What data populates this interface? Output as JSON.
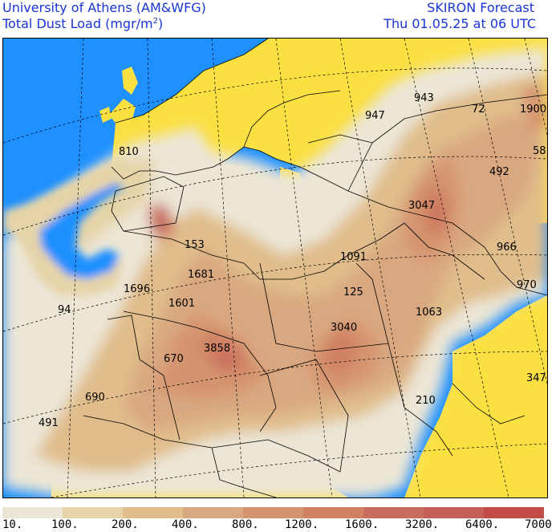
{
  "header": {
    "institution": "University of Athens (AM&WFG)",
    "variable": "Total Dust Load (mgr/m",
    "variable_exp": "2",
    "variable_close": ")",
    "model": "SKIRON Forecast",
    "valid_time": "Thu 01.05.25 at 06 UTC"
  },
  "map": {
    "colors": {
      "sea": "#1e90ff",
      "land": "#fbe042",
      "boundary": "#000000",
      "graticule": "#000000"
    },
    "labels": [
      {
        "id": "lbl-810",
        "text": "810"
      },
      {
        "id": "lbl-947",
        "text": "947"
      },
      {
        "id": "lbl-943",
        "text": "943"
      },
      {
        "id": "lbl-72",
        "text": "72"
      },
      {
        "id": "lbl-1900",
        "text": "1900"
      },
      {
        "id": "lbl-58",
        "text": "58"
      },
      {
        "id": "lbl-492",
        "text": "492"
      },
      {
        "id": "lbl-3047",
        "text": "3047"
      },
      {
        "id": "lbl-153",
        "text": "153"
      },
      {
        "id": "lbl-1091",
        "text": "1091"
      },
      {
        "id": "lbl-966",
        "text": "966"
      },
      {
        "id": "lbl-1681",
        "text": "1681"
      },
      {
        "id": "lbl-1696",
        "text": "1696"
      },
      {
        "id": "lbl-970",
        "text": "970"
      },
      {
        "id": "lbl-125",
        "text": "125"
      },
      {
        "id": "lbl-94",
        "text": "94"
      },
      {
        "id": "lbl-1601",
        "text": "1601"
      },
      {
        "id": "lbl-1063",
        "text": "1063"
      },
      {
        "id": "lbl-3040",
        "text": "3040"
      },
      {
        "id": "lbl-3858",
        "text": "3858"
      },
      {
        "id": "lbl-670",
        "text": "670"
      },
      {
        "id": "lbl-347",
        "text": "347"
      },
      {
        "id": "lbl-690",
        "text": "690"
      },
      {
        "id": "lbl-210",
        "text": "210"
      },
      {
        "id": "lbl-491",
        "text": "491"
      }
    ]
  },
  "colorbar": {
    "colors": [
      "#ece6d6",
      "#e6d4a8",
      "#e0bd8b",
      "#d9a880",
      "#d59470",
      "#d08263",
      "#c96e5e",
      "#c45e56",
      "#c34c47"
    ],
    "ticks": [
      "10.",
      "100.",
      "200.",
      "400.",
      "800.",
      "1200.",
      "1600.",
      "3200.",
      "6400.",
      "7000"
    ]
  }
}
